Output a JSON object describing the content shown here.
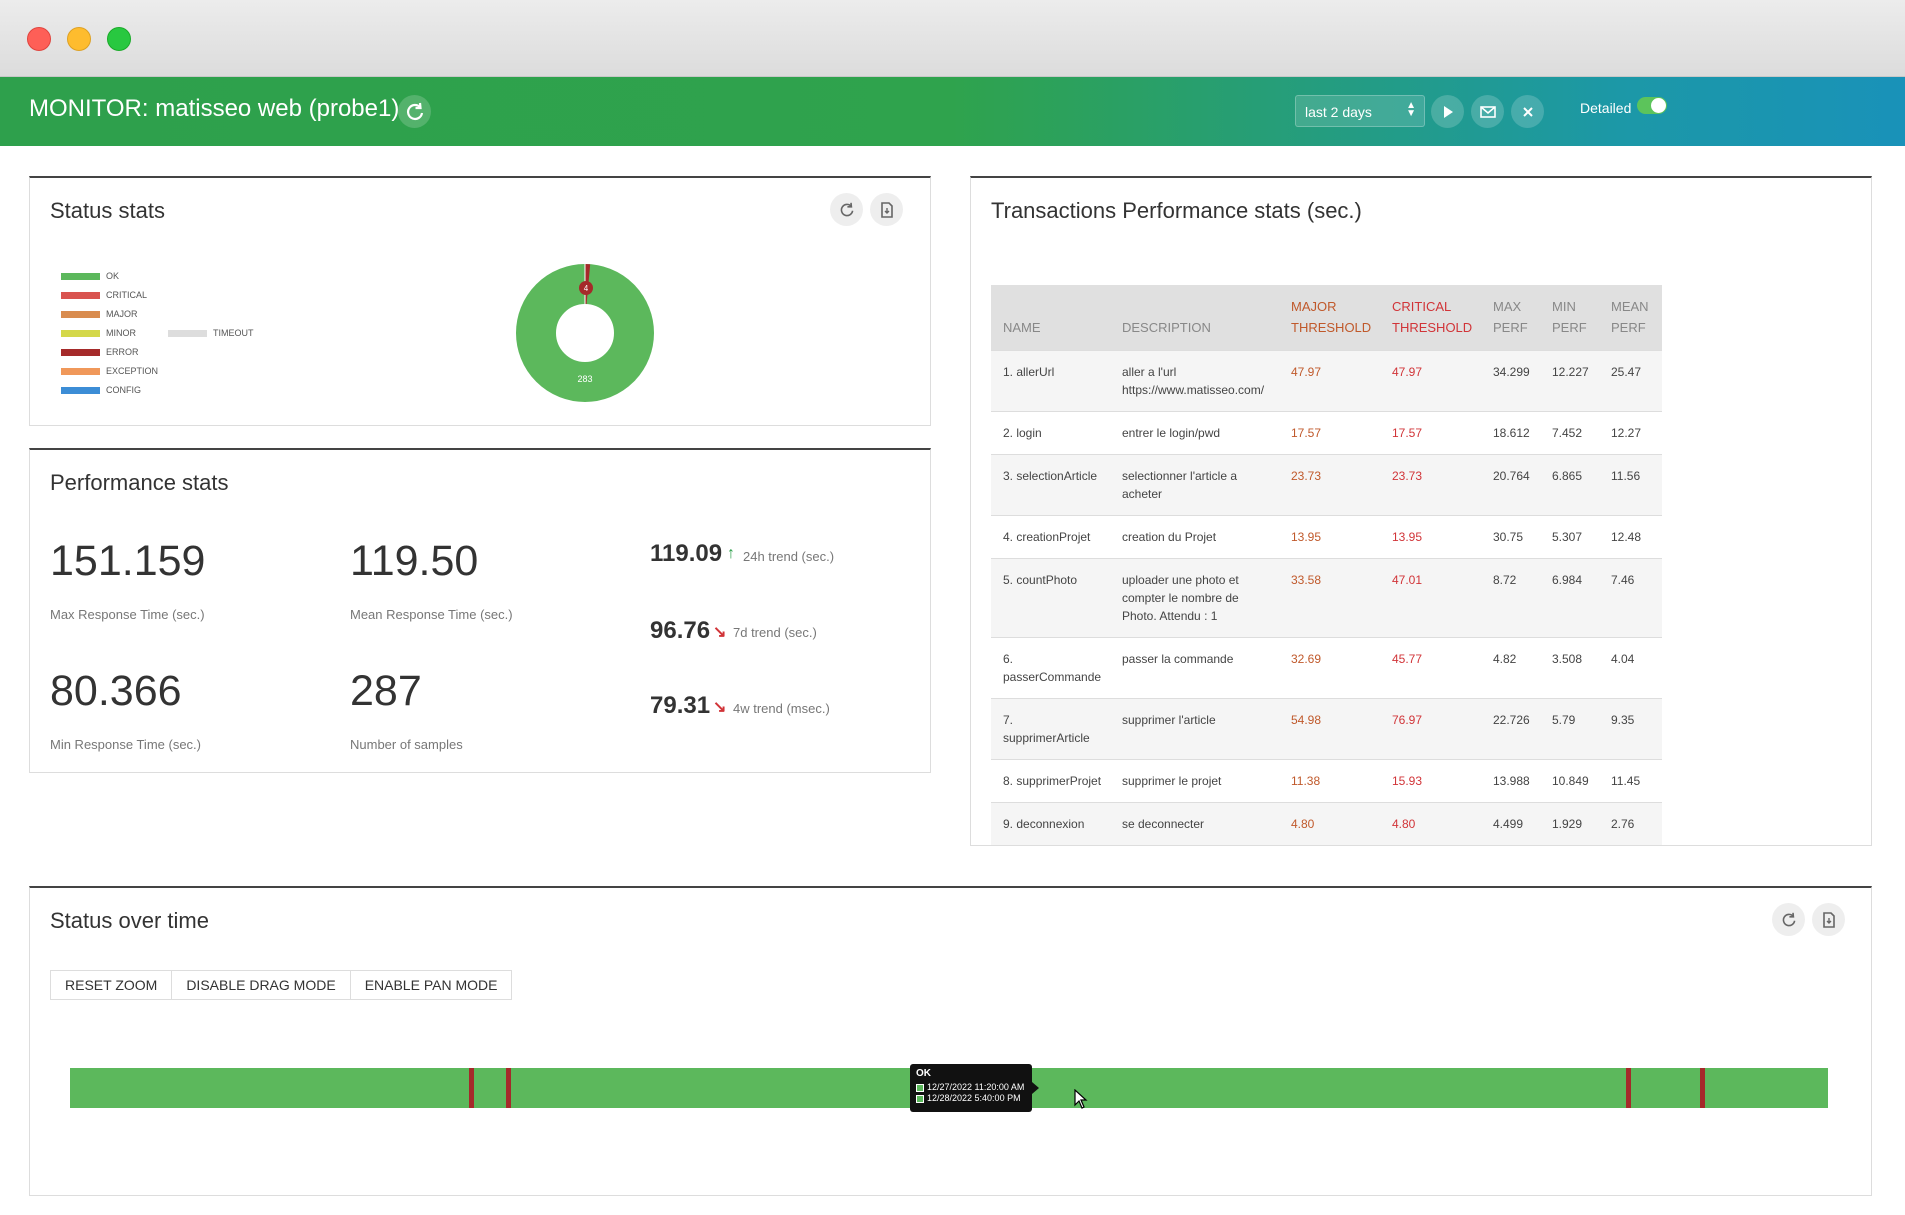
{
  "app": {
    "title": "MONITOR: matisseo web (probe1)"
  },
  "toolbar": {
    "range": "last 2 days",
    "detailed_label": "Detailed",
    "detailed_on": true
  },
  "status_stats": {
    "title": "Status stats",
    "legend": [
      {
        "label": "OK",
        "color": "#5cb85c"
      },
      {
        "label": "CRITICAL",
        "color": "#d9534f"
      },
      {
        "label": "MAJOR",
        "color": "#d98c4f"
      },
      {
        "label": "MINOR",
        "color": "#d4d84a"
      },
      {
        "label": "ERROR",
        "color": "#a52a2a"
      },
      {
        "label": "EXCEPTION",
        "color": "#f0985a"
      },
      {
        "label": "CONFIG",
        "color": "#3c8dd6"
      }
    ],
    "legend_extra": {
      "label": "TIMEOUT",
      "color": "#dddddd"
    },
    "donut": {
      "ok_count": "283",
      "critical_count": "4",
      "ok": 283,
      "critical": 4
    }
  },
  "performance_stats": {
    "title": "Performance stats",
    "max": {
      "value": "151.159",
      "label": "Max Response Time (sec.)"
    },
    "mean": {
      "value": "119.50",
      "label": "Mean Response Time (sec.)"
    },
    "min": {
      "value": "80.366",
      "label": "Min Response Time (sec.)"
    },
    "samples": {
      "value": "287",
      "label": "Number of samples"
    },
    "trends": [
      {
        "value": "119.09",
        "label": "24h trend (sec.)",
        "direction": "up"
      },
      {
        "value": "96.76",
        "label": "7d trend (sec.)",
        "direction": "down"
      },
      {
        "value": "79.31",
        "label": "4w trend (msec.)",
        "direction": "down"
      }
    ]
  },
  "transactions": {
    "title": "Transactions Performance stats (sec.)",
    "headers": {
      "name": "NAME",
      "description": "DESCRIPTION",
      "major_1": "MAJOR",
      "major_2": "THRESHOLD",
      "critical_1": "CRITICAL",
      "critical_2": "THRESHOLD",
      "max_1": "MAX",
      "max_2": "PERF",
      "min_1": "MIN",
      "min_2": "PERF",
      "mean_1": "MEAN",
      "mean_2": "PERF"
    },
    "rows": [
      {
        "name": "1. allerUrl",
        "description": "aller a l'url https://www.matisseo.com/",
        "major": "47.97",
        "critical": "47.97",
        "max": "34.299",
        "min": "12.227",
        "mean": "25.47"
      },
      {
        "name": "2. login",
        "description": "entrer le login/pwd",
        "major": "17.57",
        "critical": "17.57",
        "max": "18.612",
        "min": "7.452",
        "mean": "12.27"
      },
      {
        "name": "3. selectionArticle",
        "description": "selectionner l'article a acheter",
        "major": "23.73",
        "critical": "23.73",
        "max": "20.764",
        "min": "6.865",
        "mean": "11.56"
      },
      {
        "name": "4. creationProjet",
        "description": "creation du Projet",
        "major": "13.95",
        "critical": "13.95",
        "max": "30.75",
        "min": "5.307",
        "mean": "12.48"
      },
      {
        "name": "5. countPhoto",
        "description": "uploader une photo et compter le nombre de Photo. Attendu : 1",
        "major": "33.58",
        "critical": "47.01",
        "max": "8.72",
        "min": "6.984",
        "mean": "7.46"
      },
      {
        "name": "6. passerCommande",
        "description": "passer la commande",
        "major": "32.69",
        "critical": "45.77",
        "max": "4.82",
        "min": "3.508",
        "mean": "4.04"
      },
      {
        "name": "7. supprimerArticle",
        "description": "supprimer l'article",
        "major": "54.98",
        "critical": "76.97",
        "max": "22.726",
        "min": "5.79",
        "mean": "9.35"
      },
      {
        "name": "8. supprimerProjet",
        "description": "supprimer le projet",
        "major": "11.38",
        "critical": "15.93",
        "max": "13.988",
        "min": "10.849",
        "mean": "11.45"
      },
      {
        "name": "9. deconnexion",
        "description": "se deconnecter",
        "major": "4.80",
        "critical": "4.80",
        "max": "4.499",
        "min": "1.929",
        "mean": "2.76"
      }
    ]
  },
  "status_over_time": {
    "title": "Status over time",
    "buttons": {
      "reset_zoom": "RESET ZOOM",
      "disable_drag": "DISABLE DRAG MODE",
      "enable_pan": "ENABLE PAN MODE"
    },
    "tooltip": {
      "status": "OK",
      "start": "12/27/2022 11:20:00 AM",
      "end": "12/28/2022 5:40:00 PM"
    }
  }
}
